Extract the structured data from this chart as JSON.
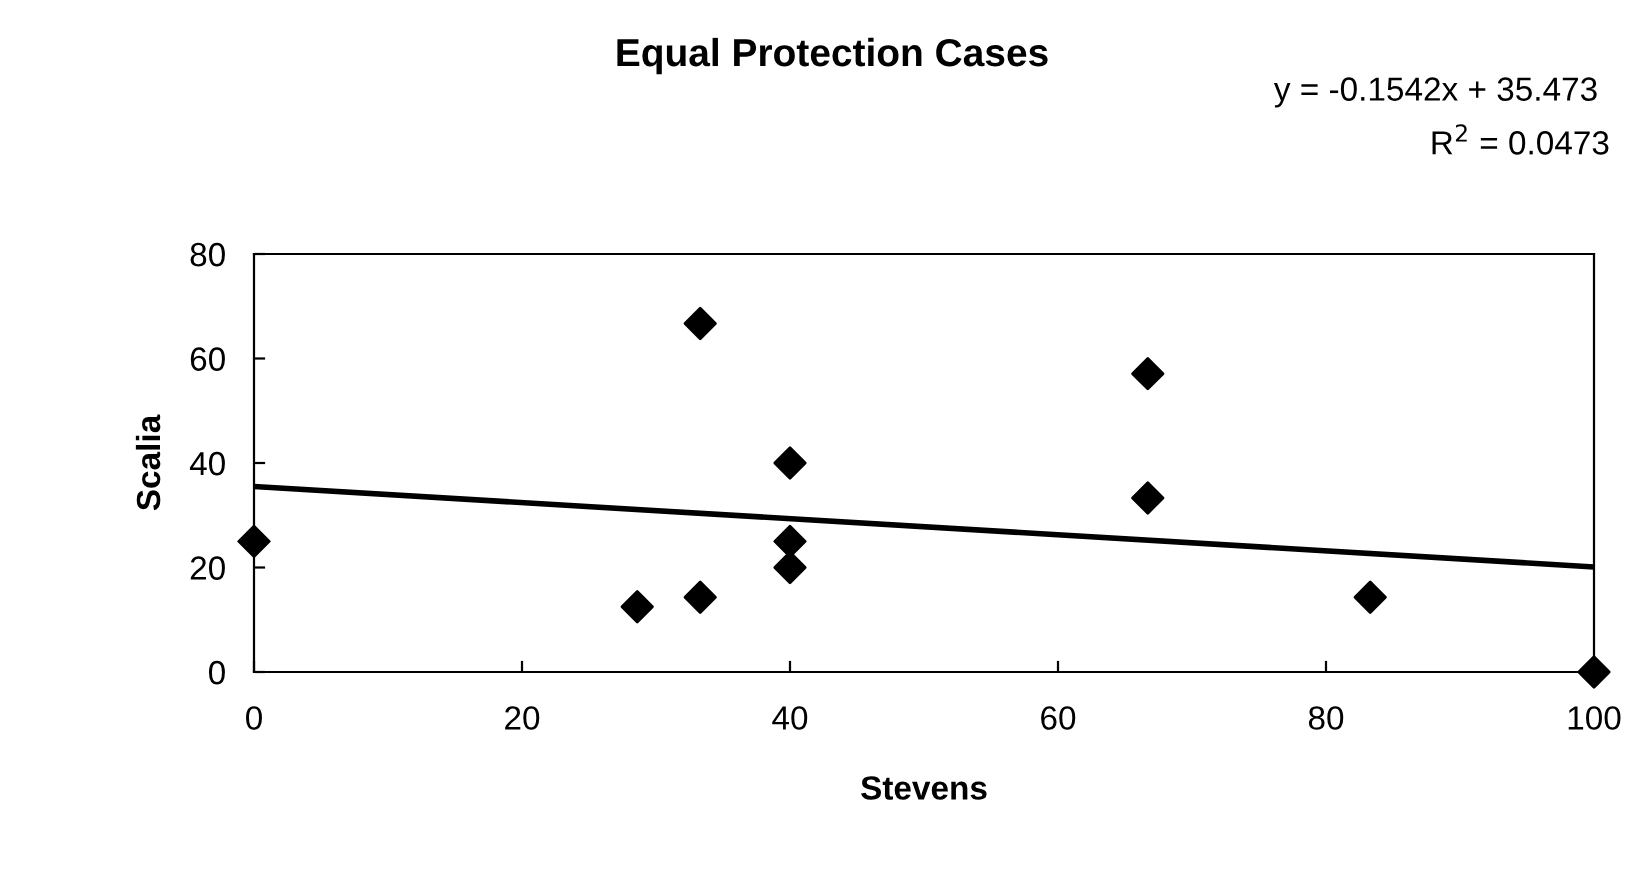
{
  "chart_data": {
    "type": "scatter",
    "title": "Equal Protection Cases",
    "xlabel": "Stevens",
    "ylabel": "Scalia",
    "annotations": [
      "y = -0.1542x + 35.473",
      "R$^{2}$ = 0.0473"
    ],
    "xlim": [
      0,
      100
    ],
    "ylim": [
      0,
      80
    ],
    "xticks": [
      0,
      20,
      40,
      60,
      80,
      100
    ],
    "yticks": [
      0,
      20,
      40,
      60,
      80
    ],
    "grid": false,
    "series": [
      {
        "marker": "diamond",
        "color": "#000000",
        "x": [
          0,
          28.6,
          33.3,
          33.3,
          40,
          40,
          40,
          66.7,
          66.7,
          83.3,
          100
        ],
        "values": [
          25,
          12.5,
          66.7,
          14.3,
          40,
          25,
          20,
          57.1,
          33.3,
          14.3,
          0
        ]
      },
      {
        "type": "line",
        "marker": "none",
        "color": "#000000",
        "x": [
          0,
          100
        ],
        "values": [
          35.5,
          20.1
        ]
      }
    ]
  }
}
